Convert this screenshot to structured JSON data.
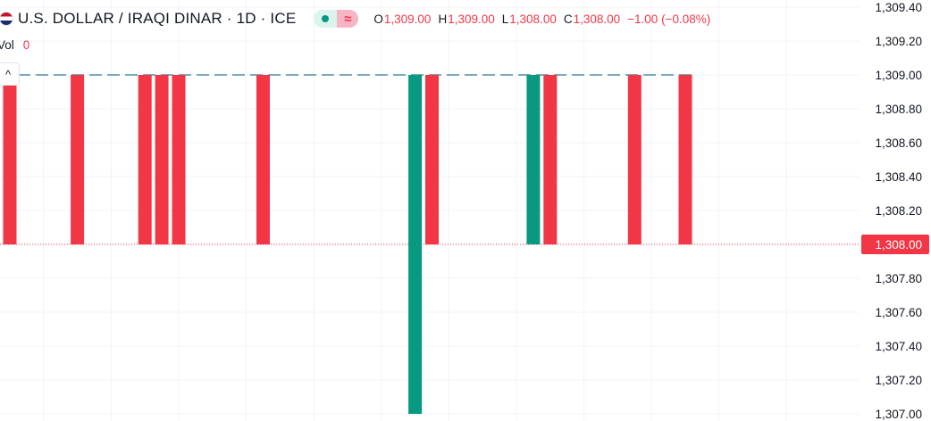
{
  "header": {
    "symbol_title": "U.S. DOLLAR / IRAQI DINAR · 1D · ICE",
    "status_symbol": "≈",
    "ohlc": {
      "o_label": "O",
      "o_value": "1,309.00",
      "h_label": "H",
      "h_value": "1,309.00",
      "l_label": "L",
      "l_value": "1,308.00",
      "c_label": "C",
      "c_value": "1,308.00",
      "change": "−1.00 (−0.08%)"
    }
  },
  "volume": {
    "label": "Vol",
    "value": "0"
  },
  "collapse_symbol": "^",
  "colors": {
    "up": "#089981",
    "down": "#f23645",
    "grid": "#f0f3fa",
    "text": "#131722",
    "price_line": "#2a7a8c"
  },
  "chart_data": {
    "type": "candlestick",
    "ylim": [
      1307.0,
      1309.4
    ],
    "y_ticks": [
      "1,309.40",
      "1,309.20",
      "1,309.00",
      "1,308.80",
      "1,308.60",
      "1,308.40",
      "1,308.20",
      "1,308.00",
      "1,307.80",
      "1,307.60",
      "1,307.40",
      "1,307.20",
      "1,307.00"
    ],
    "last_price": "1,308.00",
    "last_value": 1308.0,
    "reference_level": 1309.0,
    "candles": [
      {
        "slot": 0,
        "open": 1309.0,
        "close": 1308.0,
        "dir": "down"
      },
      {
        "slot": 4,
        "open": 1309.0,
        "close": 1308.0,
        "dir": "down"
      },
      {
        "slot": 8,
        "open": 1309.0,
        "close": 1308.0,
        "dir": "down"
      },
      {
        "slot": 9,
        "open": 1309.0,
        "close": 1308.0,
        "dir": "down"
      },
      {
        "slot": 10,
        "open": 1309.0,
        "close": 1308.0,
        "dir": "down"
      },
      {
        "slot": 15,
        "open": 1309.0,
        "close": 1308.0,
        "dir": "down"
      },
      {
        "slot": 24,
        "open": 1307.0,
        "close": 1309.0,
        "dir": "up"
      },
      {
        "slot": 25,
        "open": 1309.0,
        "close": 1308.0,
        "dir": "down"
      },
      {
        "slot": 31,
        "open": 1308.0,
        "close": 1309.0,
        "dir": "up"
      },
      {
        "slot": 32,
        "open": 1309.0,
        "close": 1308.0,
        "dir": "down"
      },
      {
        "slot": 37,
        "open": 1309.0,
        "close": 1308.0,
        "dir": "down"
      },
      {
        "slot": 40,
        "open": 1309.0,
        "close": 1308.0,
        "dir": "down"
      }
    ]
  }
}
